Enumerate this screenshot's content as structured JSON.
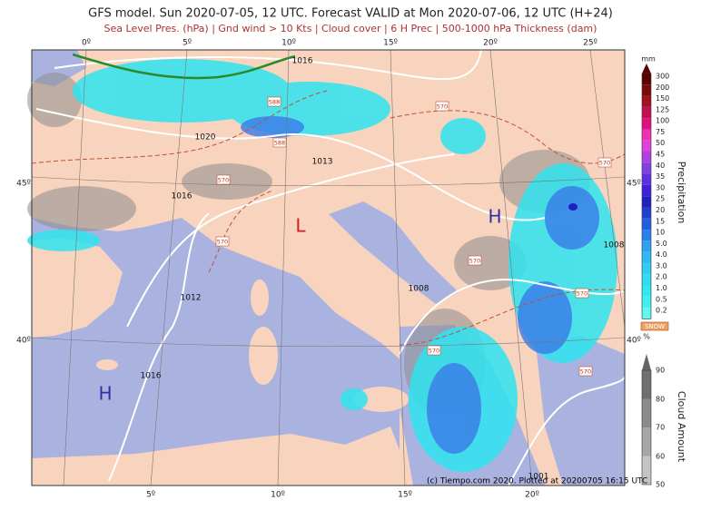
{
  "header": {
    "title": "GFS model. Sun 2020-07-05, 12 UTC. Forecast VALID at Mon 2020-07-06, 12 UTC (H+24)",
    "subtitle": "Sea Level Pres. (hPa) | Gnd wind > 10 Kts | Cloud cover | 6 H Prec | 500-1000 hPa Thickness (dam)"
  },
  "axes": {
    "lon_top": [
      "0º",
      "5º",
      "10º",
      "15º",
      "20º",
      "25º"
    ],
    "lon_bottom": [
      "5º",
      "10º",
      "15º",
      "20º"
    ],
    "lat_left": [
      "45º",
      "40º"
    ],
    "lat_right": [
      "45º",
      "40º"
    ]
  },
  "map_labels": {
    "isobars": [
      "1016",
      "1020",
      "1013",
      "1016",
      "1012",
      "1016",
      "1008",
      "1008",
      "1001"
    ],
    "centers": [
      "L",
      "H",
      "H"
    ],
    "thickness": [
      "588",
      "588",
      "570",
      "570",
      "570",
      "570",
      "570",
      "570",
      "570",
      "570"
    ]
  },
  "precipitation_scale": {
    "unit": "mm",
    "title": "Precipitation",
    "labels": [
      "300",
      "200",
      "150",
      "125",
      "100",
      "75",
      "50",
      "45",
      "40",
      "35",
      "30",
      "25",
      "20",
      "15",
      "10",
      "5.0",
      "4.0",
      "3.0",
      "2.0",
      "1.0",
      "0.5",
      "0.2"
    ]
  },
  "snow_label": "SNOW",
  "cloud_scale": {
    "unit": "%",
    "title": "Cloud Amount",
    "labels": [
      "90",
      "80",
      "70",
      "60",
      "50"
    ]
  },
  "credit": "(c) Tiempo.com 2020. Plotted at 20200705 16:15 UTC"
}
